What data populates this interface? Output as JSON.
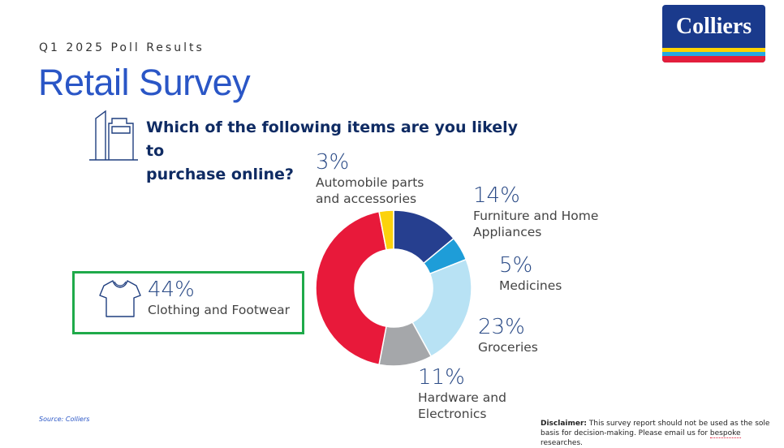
{
  "header": {
    "eyebrow": "Q1 2025 Poll Results",
    "title": "Retail Survey",
    "logo_text": "Colliers"
  },
  "question": {
    "line1": "Which of the following items are you likely to",
    "line2": "purchase online?"
  },
  "icons": {
    "building": "building-icon",
    "shirt": "shirt-icon"
  },
  "chart_data": {
    "type": "pie",
    "title": "",
    "slices": [
      {
        "label": "Furniture and Home Appliances",
        "label_line1": "Furniture and Home",
        "label_line2": "Appliances",
        "value": 14,
        "display": "14%",
        "color": "#263f8f"
      },
      {
        "label": "Medicines",
        "label_line1": "Medicines",
        "label_line2": "",
        "value": 5,
        "display": "5%",
        "color": "#1e9dd8"
      },
      {
        "label": "Groceries",
        "label_line1": "Groceries",
        "label_line2": "",
        "value": 23,
        "display": "23%",
        "color": "#b8e2f4"
      },
      {
        "label": "Hardware and Electronics",
        "label_line1": "Hardware and",
        "label_line2": "Electronics",
        "value": 11,
        "display": "11%",
        "color": "#a5a7aa"
      },
      {
        "label": "Clothing and Footwear",
        "label_line1": "Clothing and Footwear",
        "label_line2": "",
        "value": 44,
        "display": "44%",
        "color": "#e8193a"
      },
      {
        "label": "Automobile parts and accessories",
        "label_line1": "Automobile parts",
        "label_line2": "and accessories",
        "value": 3,
        "display": "3%",
        "color": "#fcd20c"
      }
    ],
    "hole_ratio": 0.5,
    "start_angle_deg": 0,
    "highlight": "Clothing and Footwear",
    "highlight_color": "#1faa4a"
  },
  "footer": {
    "source": "Source: Colliers",
    "disclaimer_label": "Disclaimer:",
    "disclaimer_text1": " This survey report should not be used as the sole basis for decision-making. Please email us for ",
    "disclaimer_word": "bespoke",
    "disclaimer_text2": " researches."
  }
}
